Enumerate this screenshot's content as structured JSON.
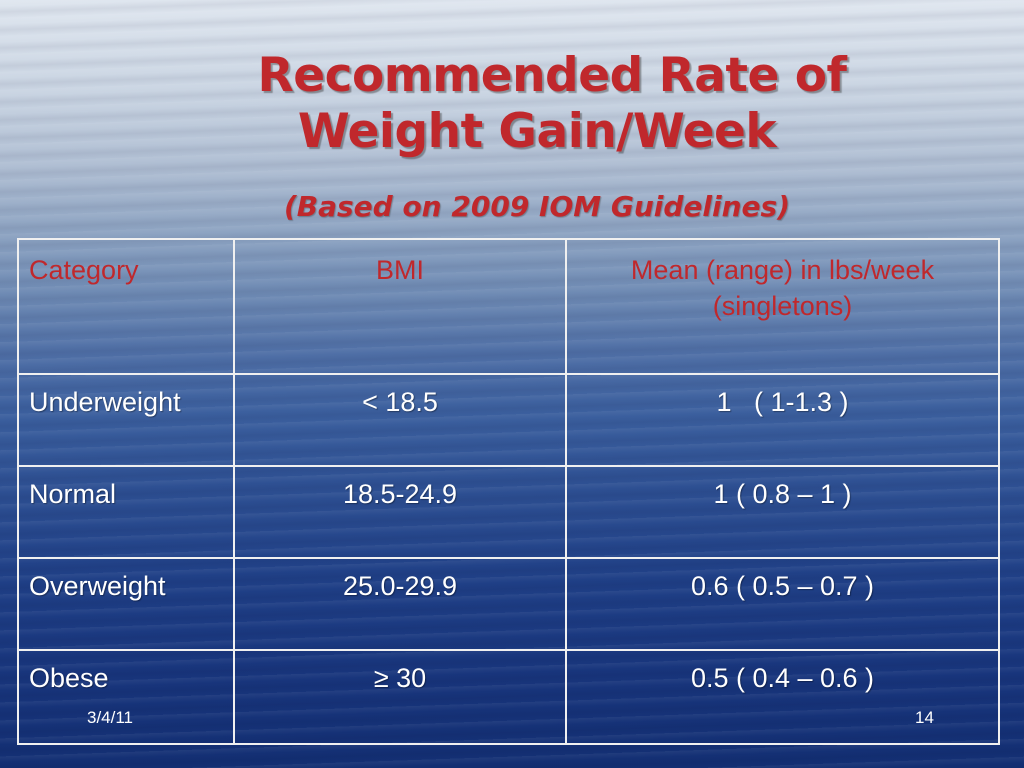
{
  "slide": {
    "title_line1": "Recommended Rate of",
    "title_line2": "Weight Gain/Week",
    "subtitle": "(Based on 2009 IOM Guidelines)"
  },
  "table": {
    "headers": [
      "Category",
      "BMI",
      "Mean (range) in lbs/week",
      "(singletons)"
    ],
    "rows": [
      [
        "Underweight",
        "< 18.5",
        "1   ( 1-1.3 )"
      ],
      [
        "Normal",
        "18.5-24.9",
        "1 ( 0.8 – 1 )"
      ],
      [
        "Overweight",
        "25.0-29.9",
        "0.6 ( 0.5 – 0.7 )"
      ],
      [
        "Obese",
        "≥ 30",
        "0.5 ( 0.4 – 0.6 )"
      ]
    ]
  },
  "footer": {
    "date": "3/4/11",
    "page_number": "14"
  },
  "colors": {
    "title": "#c0282c",
    "body_text": "#ffffff",
    "grid": "#f0f0f0"
  }
}
